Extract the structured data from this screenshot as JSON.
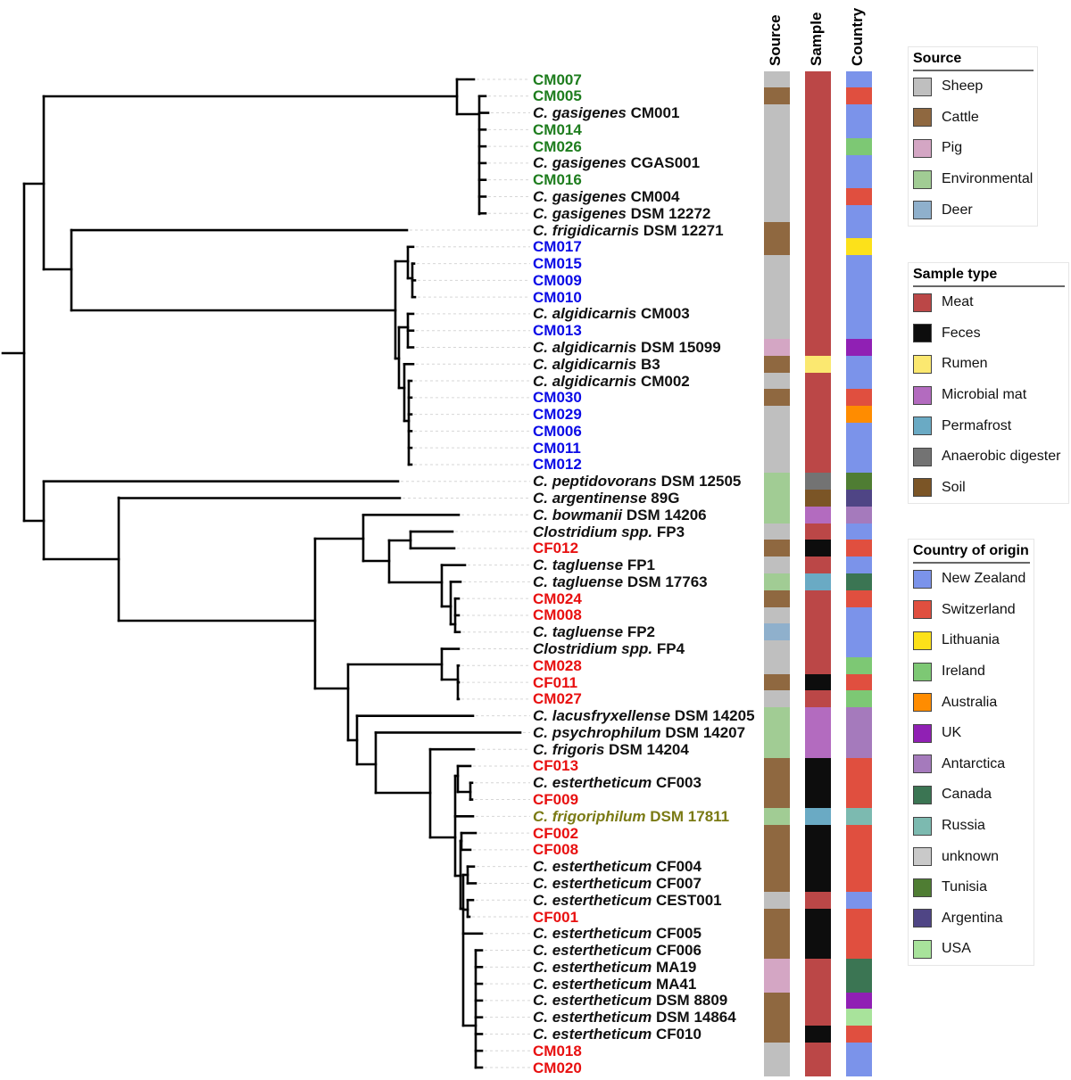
{
  "columns": {
    "source": "Source",
    "sample": "Sample",
    "country": "Country"
  },
  "label_colors": {
    "black": "#111111",
    "green": "#1e7d1e",
    "blue": "#0a0ae6",
    "red": "#e81010",
    "olive": "#7a7a14"
  },
  "legends": {
    "source": {
      "title": "Source",
      "items": [
        {
          "key": "sheep",
          "label": "Sheep",
          "color": "#bfbfbf"
        },
        {
          "key": "cattle",
          "label": "Cattle",
          "color": "#8f6840"
        },
        {
          "key": "pig",
          "label": "Pig",
          "color": "#d4a6c4"
        },
        {
          "key": "env",
          "label": "Environmental",
          "color": "#a1cc94"
        },
        {
          "key": "deer",
          "label": "Deer",
          "color": "#8fb0cc"
        }
      ]
    },
    "sample": {
      "title": "Sample type",
      "items": [
        {
          "key": "meat",
          "label": "Meat",
          "color": "#bb4747"
        },
        {
          "key": "feces",
          "label": "Feces",
          "color": "#0d0d0d"
        },
        {
          "key": "rumen",
          "label": "Rumen",
          "color": "#fbe870"
        },
        {
          "key": "mat",
          "label": "Microbial mat",
          "color": "#b36bbf"
        },
        {
          "key": "permafrost",
          "label": "Permafrost",
          "color": "#6aaac4"
        },
        {
          "key": "digester",
          "label": "Anaerobic digester",
          "color": "#737373"
        },
        {
          "key": "soil",
          "label": "Soil",
          "color": "#7b5526"
        }
      ]
    },
    "country": {
      "title": "Country of origin",
      "items": [
        {
          "key": "nz",
          "label": "New Zealand",
          "color": "#7b93ea"
        },
        {
          "key": "ch",
          "label": "Switzerland",
          "color": "#e04f3f"
        },
        {
          "key": "lt",
          "label": "Lithuania",
          "color": "#fce11a"
        },
        {
          "key": "ie",
          "label": "Ireland",
          "color": "#7dc874"
        },
        {
          "key": "au",
          "label": "Australia",
          "color": "#ff8c00"
        },
        {
          "key": "uk",
          "label": "UK",
          "color": "#9020b4"
        },
        {
          "key": "aq",
          "label": "Antarctica",
          "color": "#a57abc"
        },
        {
          "key": "ca",
          "label": "Canada",
          "color": "#3b7553"
        },
        {
          "key": "ru",
          "label": "Russia",
          "color": "#7cbab0"
        },
        {
          "key": "unk",
          "label": "unknown",
          "color": "#c9c9c9"
        },
        {
          "key": "tn",
          "label": "Tunisia",
          "color": "#4f7d33"
        },
        {
          "key": "ar",
          "label": "Argentina",
          "color": "#4f4585"
        },
        {
          "key": "us",
          "label": "USA",
          "color": "#a8e39b"
        }
      ]
    }
  },
  "tips": [
    {
      "species": "",
      "strain": "CM007",
      "color": "green",
      "source": "sheep",
      "sample": "meat",
      "country": "nz"
    },
    {
      "species": "",
      "strain": "CM005",
      "color": "green",
      "source": "cattle",
      "sample": "meat",
      "country": "ch"
    },
    {
      "species": "C. gasigenes",
      "strain": "CM001",
      "color": "black",
      "source": "sheep",
      "sample": "meat",
      "country": "nz"
    },
    {
      "species": "",
      "strain": "CM014",
      "color": "green",
      "source": "sheep",
      "sample": "meat",
      "country": "nz"
    },
    {
      "species": "",
      "strain": "CM026",
      "color": "green",
      "source": "sheep",
      "sample": "meat",
      "country": "ie"
    },
    {
      "species": "C. gasigenes",
      "strain": "CGAS001",
      "color": "black",
      "source": "sheep",
      "sample": "meat",
      "country": "nz"
    },
    {
      "species": "",
      "strain": "CM016",
      "color": "green",
      "source": "sheep",
      "sample": "meat",
      "country": "nz"
    },
    {
      "species": "C. gasigenes",
      "strain": "CM004",
      "color": "black",
      "source": "sheep",
      "sample": "meat",
      "country": "ch"
    },
    {
      "species": "C. gasigenes",
      "strain": "DSM 12272",
      "color": "black",
      "source": "sheep",
      "sample": "meat",
      "country": "nz"
    },
    {
      "species": "C. frigidicarnis",
      "strain": "DSM 12271",
      "color": "black",
      "source": "cattle",
      "sample": "meat",
      "country": "nz"
    },
    {
      "species": "",
      "strain": "CM017",
      "color": "blue",
      "source": "cattle",
      "sample": "meat",
      "country": "lt"
    },
    {
      "species": "",
      "strain": "CM015",
      "color": "blue",
      "source": "sheep",
      "sample": "meat",
      "country": "nz"
    },
    {
      "species": "",
      "strain": "CM009",
      "color": "blue",
      "source": "sheep",
      "sample": "meat",
      "country": "nz"
    },
    {
      "species": "",
      "strain": "CM010",
      "color": "blue",
      "source": "sheep",
      "sample": "meat",
      "country": "nz"
    },
    {
      "species": "C. algidicarnis",
      "strain": "CM003",
      "color": "black",
      "source": "sheep",
      "sample": "meat",
      "country": "nz"
    },
    {
      "species": "",
      "strain": "CM013",
      "color": "blue",
      "source": "sheep",
      "sample": "meat",
      "country": "nz"
    },
    {
      "species": "C. algidicarnis",
      "strain": "DSM 15099",
      "color": "black",
      "source": "pig",
      "sample": "meat",
      "country": "uk"
    },
    {
      "species": "C. algidicarnis",
      "strain": "B3",
      "color": "black",
      "source": "cattle",
      "sample": "rumen",
      "country": "nz"
    },
    {
      "species": "C. algidicarnis",
      "strain": "CM002",
      "color": "black",
      "source": "sheep",
      "sample": "meat",
      "country": "nz"
    },
    {
      "species": "",
      "strain": "CM030",
      "color": "blue",
      "source": "cattle",
      "sample": "meat",
      "country": "ch"
    },
    {
      "species": "",
      "strain": "CM029",
      "color": "blue",
      "source": "sheep",
      "sample": "meat",
      "country": "au"
    },
    {
      "species": "",
      "strain": "CM006",
      "color": "blue",
      "source": "sheep",
      "sample": "meat",
      "country": "nz"
    },
    {
      "species": "",
      "strain": "CM011",
      "color": "blue",
      "source": "sheep",
      "sample": "meat",
      "country": "nz"
    },
    {
      "species": "",
      "strain": "CM012",
      "color": "blue",
      "source": "sheep",
      "sample": "meat",
      "country": "nz"
    },
    {
      "species": "C. peptidovorans",
      "strain": "DSM 12505",
      "color": "black",
      "source": "env",
      "sample": "digester",
      "country": "tn"
    },
    {
      "species": "C. argentinense",
      "strain": "89G",
      "color": "black",
      "source": "env",
      "sample": "soil",
      "country": "ar"
    },
    {
      "species": "C. bowmanii",
      "strain": "DSM 14206",
      "color": "black",
      "source": "env",
      "sample": "mat",
      "country": "aq"
    },
    {
      "species": "Clostridium spp.",
      "strain": "FP3",
      "color": "black",
      "source": "sheep",
      "sample": "meat",
      "country": "nz"
    },
    {
      "species": "",
      "strain": "CF012",
      "color": "red",
      "source": "cattle",
      "sample": "feces",
      "country": "ch"
    },
    {
      "species": "C. tagluense",
      "strain": "FP1",
      "color": "black",
      "source": "sheep",
      "sample": "meat",
      "country": "nz"
    },
    {
      "species": "C. tagluense",
      "strain": "DSM 17763",
      "color": "black",
      "source": "env",
      "sample": "permafrost",
      "country": "ca"
    },
    {
      "species": "",
      "strain": "CM024",
      "color": "red",
      "source": "cattle",
      "sample": "meat",
      "country": "ch"
    },
    {
      "species": "",
      "strain": "CM008",
      "color": "red",
      "source": "sheep",
      "sample": "meat",
      "country": "nz"
    },
    {
      "species": "C. tagluense",
      "strain": "FP2",
      "color": "black",
      "source": "deer",
      "sample": "meat",
      "country": "nz"
    },
    {
      "species": "Clostridium spp.",
      "strain": "FP4",
      "color": "black",
      "source": "sheep",
      "sample": "meat",
      "country": "nz"
    },
    {
      "species": "",
      "strain": "CM028",
      "color": "red",
      "source": "sheep",
      "sample": "meat",
      "country": "ie"
    },
    {
      "species": "",
      "strain": "CF011",
      "color": "red",
      "source": "cattle",
      "sample": "feces",
      "country": "ch"
    },
    {
      "species": "",
      "strain": "CM027",
      "color": "red",
      "source": "sheep",
      "sample": "meat",
      "country": "ie"
    },
    {
      "species": "C. lacusfryxellense",
      "strain": "DSM 14205",
      "color": "black",
      "source": "env",
      "sample": "mat",
      "country": "aq"
    },
    {
      "species": "C. psychrophilum",
      "strain": "DSM 14207",
      "color": "black",
      "source": "env",
      "sample": "mat",
      "country": "aq"
    },
    {
      "species": "C. frigoris",
      "strain": "DSM 14204",
      "color": "black",
      "source": "env",
      "sample": "mat",
      "country": "aq"
    },
    {
      "species": "",
      "strain": "CF013",
      "color": "red",
      "source": "cattle",
      "sample": "feces",
      "country": "ch"
    },
    {
      "species": "C. estertheticum",
      "strain": "CF003",
      "color": "black",
      "source": "cattle",
      "sample": "feces",
      "country": "ch"
    },
    {
      "species": "",
      "strain": "CF009",
      "color": "red",
      "source": "cattle",
      "sample": "feces",
      "country": "ch"
    },
    {
      "species": "C. frigoriphilum",
      "strain": "DSM 17811",
      "color": "olive",
      "source": "env",
      "sample": "permafrost",
      "country": "ru"
    },
    {
      "species": "",
      "strain": "CF002",
      "color": "red",
      "source": "cattle",
      "sample": "feces",
      "country": "ch"
    },
    {
      "species": "",
      "strain": "CF008",
      "color": "red",
      "source": "cattle",
      "sample": "feces",
      "country": "ch"
    },
    {
      "species": "C. estertheticum",
      "strain": "CF004",
      "color": "black",
      "source": "cattle",
      "sample": "feces",
      "country": "ch"
    },
    {
      "species": "C. estertheticum",
      "strain": "CF007",
      "color": "black",
      "source": "cattle",
      "sample": "feces",
      "country": "ch"
    },
    {
      "species": "C. estertheticum",
      "strain": "CEST001",
      "color": "black",
      "source": "sheep",
      "sample": "meat",
      "country": "nz"
    },
    {
      "species": "",
      "strain": "CF001",
      "color": "red",
      "source": "cattle",
      "sample": "feces",
      "country": "ch"
    },
    {
      "species": "C. estertheticum",
      "strain": "CF005",
      "color": "black",
      "source": "cattle",
      "sample": "feces",
      "country": "ch"
    },
    {
      "species": "C. estertheticum",
      "strain": "CF006",
      "color": "black",
      "source": "cattle",
      "sample": "feces",
      "country": "ch"
    },
    {
      "species": "C. estertheticum",
      "strain": "MA19",
      "color": "black",
      "source": "pig",
      "sample": "meat",
      "country": "ca"
    },
    {
      "species": "C. estertheticum",
      "strain": "MA41",
      "color": "black",
      "source": "pig",
      "sample": "meat",
      "country": "ca"
    },
    {
      "species": "C. estertheticum",
      "strain": "DSM 8809",
      "color": "black",
      "source": "cattle",
      "sample": "meat",
      "country": "uk"
    },
    {
      "species": "C. estertheticum",
      "strain": "DSM 14864",
      "color": "black",
      "source": "cattle",
      "sample": "meat",
      "country": "us"
    },
    {
      "species": "C. estertheticum",
      "strain": "CF010",
      "color": "black",
      "source": "cattle",
      "sample": "feces",
      "country": "ch"
    },
    {
      "species": "",
      "strain": "CM018",
      "color": "red",
      "source": "sheep",
      "sample": "meat",
      "country": "nz"
    },
    {
      "species": "",
      "strain": "CM020",
      "color": "red",
      "source": "sheep",
      "sample": "meat",
      "country": "nz"
    }
  ]
}
